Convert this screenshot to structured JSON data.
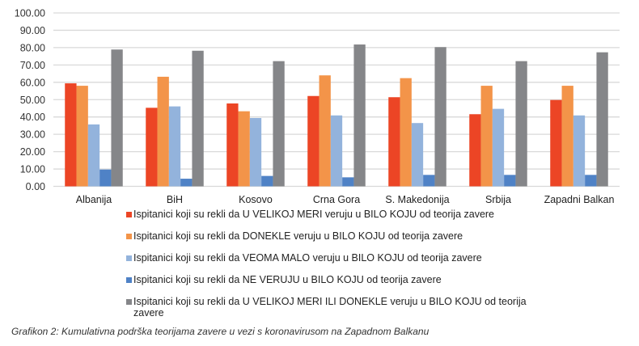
{
  "chart_data": {
    "type": "bar",
    "title": "",
    "xlabel": "",
    "ylabel": "",
    "ylim": [
      0,
      100
    ],
    "yticks": [
      "0.00",
      "10.00",
      "20.00",
      "30.00",
      "40.00",
      "50.00",
      "60.00",
      "70.00",
      "80.00",
      "90.00",
      "100.00"
    ],
    "grid": true,
    "legend_position": "bottom",
    "categories": [
      "Albanija",
      "BiH",
      "Kosovo",
      "Crna Gora",
      "S. Makedonija",
      "Srbija",
      "Zapadni Balkan"
    ],
    "series": [
      {
        "name": "Ispitanici koji su rekli da U VELIKOJ MERI veruju u BILO KOJU od teorija zavere",
        "color": "#ec4525",
        "values": [
          59.4,
          45.3,
          47.8,
          52.1,
          51.4,
          41.6,
          49.8
        ]
      },
      {
        "name": "Ispitanici koji su rekli da DONEKLE veruju u BILO KOJU od teorija zavere",
        "color": "#f39449",
        "values": [
          58.0,
          63.2,
          43.3,
          64.0,
          62.4,
          58.0,
          58.0
        ]
      },
      {
        "name": "Ispitanici koji su rekli da VEOMA MALO veruju u BILO KOJU od teorija zavere",
        "color": "#93b3dc",
        "values": [
          35.7,
          46.1,
          39.4,
          40.9,
          36.5,
          44.7,
          40.9
        ]
      },
      {
        "name": "Ispitanici koji su rekli da NE VERUJU u BILO KOJU od teorija zavere",
        "color": "#4f82c6",
        "values": [
          9.7,
          4.4,
          6.0,
          5.2,
          6.6,
          6.6,
          6.6
        ]
      },
      {
        "name": "Ispitanici koji su rekli da U VELIKOJ MERI ILI DONEKLE veruju u BILO KOJU od teorija zavere",
        "color": "#858689",
        "values": [
          78.9,
          78.2,
          72.2,
          81.8,
          80.3,
          72.2,
          77.3
        ]
      }
    ]
  },
  "caption": "Grafikon 2: Kumulativna podrška teorijama zavere u vezi s koronavirusom na Zapadnom Balkanu"
}
